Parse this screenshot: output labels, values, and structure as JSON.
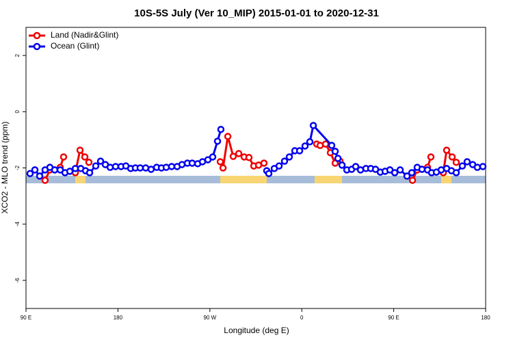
{
  "chart_data": {
    "type": "line",
    "title": "10S-5S July (Ver 10_MIP)   2015-01-01 to 2020-12-31",
    "x_label": "Longitude (deg E)",
    "y_label": "XCO2 - MLO trend (ppm)",
    "xlim": [
      90,
      540
    ],
    "ylim": [
      -7,
      3
    ],
    "xticks": [
      {
        "value": 90,
        "label": "90 E"
      },
      180,
      {
        "value": 270,
        "label": "90 W"
      },
      {
        "value": 360,
        "label": "0"
      },
      {
        "value": 450,
        "label": "90 E"
      },
      {
        "value": 540,
        "label": "180"
      }
    ],
    "yticks": [
      -6,
      -4,
      -2,
      0,
      2
    ],
    "legend": "top-left",
    "series": [
      {
        "name": "Land (Nadir&Glint)",
        "color": "#ee0000",
        "x": [
          108.7,
          113.4,
          123.5,
          126.8,
          132,
          138.3,
          142.9,
          147.6,
          151.6,
          200,
          280.2,
          282.9,
          287.6,
          292.9,
          298.3,
          303.6,
          308.3,
          313.0,
          317.7,
          323.0,
          350,
          374.6,
          378.0,
          383.3,
          388.0,
          392.7,
          397.4,
          430,
          468.4,
          473.0,
          483.1,
          486.4,
          492,
          498.5,
          501.8,
          507.2,
          511.2
        ],
        "values": [
          -2.44,
          -2.07,
          -1.98,
          -1.61,
          null,
          -2.17,
          -1.37,
          -1.61,
          -1.8,
          null,
          -1.78,
          -2.0,
          -0.88,
          -1.59,
          -1.49,
          -1.61,
          -1.63,
          -1.93,
          -1.9,
          -1.83,
          null,
          -1.15,
          -1.2,
          -1.15,
          -1.46,
          -1.83,
          -1.76,
          null,
          -2.44,
          -2.07,
          -1.98,
          -1.61,
          null,
          -2.17,
          -1.37,
          -1.61,
          -1.8
        ]
      },
      {
        "name": "Ocean (Glint)",
        "color": "#0000ee",
        "x": [
          94.0,
          98.7,
          103.4,
          108.7,
          113.4,
          118.1,
          123.5,
          128.2,
          132.9,
          138.3,
          143.6,
          148.3,
          152.3,
          158.3,
          163.0,
          167.7,
          172.4,
          177.7,
          183.1,
          187.8,
          192.5,
          197.1,
          201.8,
          207.2,
          212.5,
          217.9,
          222.6,
          227.3,
          232.6,
          238.0,
          242.7,
          248.0,
          252.7,
          258.1,
          262.8,
          268.1,
          272.8,
          277.5,
          280.8,
          303.0,
          325.7,
          327.7,
          333.1,
          337.8,
          343.1,
          347.8,
          353.2,
          357.9,
          363.2,
          367.9,
          371.3,
          389.3,
          392.7,
          395.4,
          399.4,
          404.1,
          408.8,
          412.8,
          417.5,
          422.8,
          427.5,
          432.2,
          436.9,
          441.6,
          446.3,
          451.0,
          456.3,
          463.0,
          467.7,
          473.0,
          477.7,
          483.1,
          487.1,
          491.8,
          496.5,
          501.8,
          506.5,
          511.2,
          517.2,
          521.9,
          527.3,
          531.9,
          537.3
        ],
        "values": [
          -2.2,
          -2.07,
          -2.29,
          -2.07,
          -1.98,
          -2.07,
          -2.07,
          -2.17,
          -2.12,
          -2.02,
          -2.02,
          -2.1,
          -2.17,
          -1.93,
          -1.76,
          -1.88,
          -1.98,
          -1.95,
          -1.95,
          -1.93,
          -2.02,
          -2.0,
          -2.0,
          -2.0,
          -2.05,
          -1.98,
          -2.0,
          -1.98,
          -1.95,
          -1.95,
          -1.88,
          -1.83,
          -1.83,
          -1.85,
          -1.78,
          -1.71,
          -1.61,
          -1.05,
          -0.63,
          null,
          -2.1,
          -2.2,
          -2.02,
          -1.93,
          -1.76,
          -1.61,
          -1.39,
          -1.39,
          -1.22,
          -1.07,
          -0.49,
          -1.2,
          -1.41,
          -1.66,
          -1.9,
          -2.07,
          -2.05,
          -1.95,
          -2.07,
          -2.02,
          -2.02,
          -2.05,
          -2.15,
          -2.12,
          -2.07,
          -2.17,
          -2.07,
          -2.29,
          -2.17,
          -1.98,
          -2.05,
          -2.07,
          -2.17,
          -2.15,
          -2.07,
          -2.02,
          -2.1,
          -2.17,
          -1.93,
          -1.78,
          -1.88,
          -1.98,
          -1.95
        ]
      }
    ]
  }
}
